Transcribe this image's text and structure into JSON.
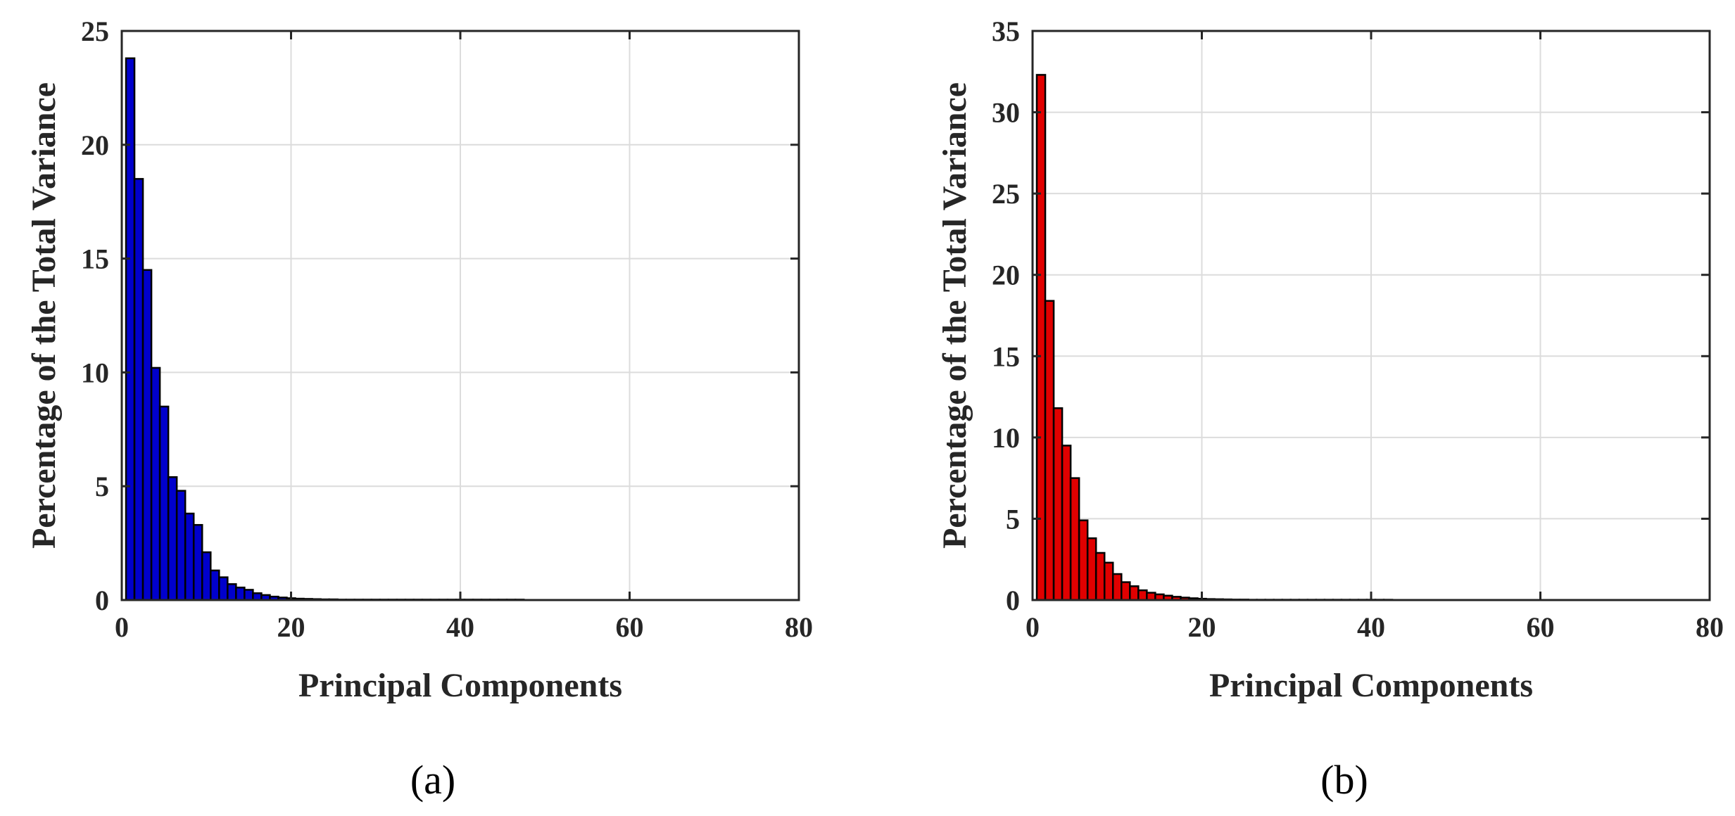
{
  "chart_data": [
    {
      "type": "bar",
      "panel_label": "(a)",
      "xlabel": "Principal Components",
      "ylabel": "Percentage of the Total Variance",
      "xlim": [
        0,
        80
      ],
      "ylim": [
        0,
        25
      ],
      "xticks": [
        0,
        20,
        40,
        60,
        80
      ],
      "yticks": [
        0,
        5,
        10,
        15,
        20,
        25
      ],
      "grid": true,
      "bar_color": "#0000cc",
      "x": [
        1,
        2,
        3,
        4,
        5,
        6,
        7,
        8,
        9,
        10,
        11,
        12,
        13,
        14,
        15,
        16,
        17,
        18,
        19,
        20,
        21,
        22,
        23,
        24,
        25,
        26,
        27,
        28,
        29,
        30,
        31,
        32,
        33,
        34,
        35,
        36,
        37,
        38,
        39,
        40,
        41,
        42,
        43,
        44,
        45,
        46,
        47
      ],
      "values": [
        23.8,
        18.5,
        14.5,
        10.2,
        8.5,
        5.4,
        4.8,
        3.8,
        3.3,
        2.1,
        1.3,
        1.0,
        0.7,
        0.55,
        0.45,
        0.3,
        0.22,
        0.15,
        0.11,
        0.08,
        0.06,
        0.05,
        0.04,
        0.03,
        0.03,
        0.02,
        0.02,
        0.02,
        0.02,
        0.02,
        0.02,
        0.02,
        0.02,
        0.02,
        0.02,
        0.02,
        0.02,
        0.02,
        0.02,
        0.02,
        0.02,
        0.02,
        0.02,
        0.02,
        0.02,
        0.02,
        0.02
      ]
    },
    {
      "type": "bar",
      "panel_label": "(b)",
      "xlabel": "Principal Components",
      "ylabel": "Percentage of the Total Variance",
      "xlim": [
        0,
        80
      ],
      "ylim": [
        0,
        35
      ],
      "xticks": [
        0,
        20,
        40,
        60,
        80
      ],
      "yticks": [
        0,
        5,
        10,
        15,
        20,
        25,
        30,
        35
      ],
      "grid": true,
      "bar_color": "#e00000",
      "x": [
        1,
        2,
        3,
        4,
        5,
        6,
        7,
        8,
        9,
        10,
        11,
        12,
        13,
        14,
        15,
        16,
        17,
        18,
        19,
        20,
        21,
        22,
        23,
        24,
        25,
        26,
        27,
        28,
        29,
        30,
        31,
        32,
        33,
        34,
        35,
        36,
        37,
        38,
        39,
        40,
        41,
        42
      ],
      "values": [
        32.3,
        18.4,
        11.8,
        9.5,
        7.5,
        4.9,
        3.8,
        2.9,
        2.3,
        1.6,
        1.1,
        0.85,
        0.6,
        0.45,
        0.35,
        0.27,
        0.2,
        0.15,
        0.11,
        0.08,
        0.06,
        0.05,
        0.04,
        0.03,
        0.03,
        0.02,
        0.02,
        0.02,
        0.02,
        0.02,
        0.02,
        0.02,
        0.02,
        0.02,
        0.02,
        0.02,
        0.02,
        0.02,
        0.02,
        0.02,
        0.02,
        0.02
      ]
    }
  ]
}
